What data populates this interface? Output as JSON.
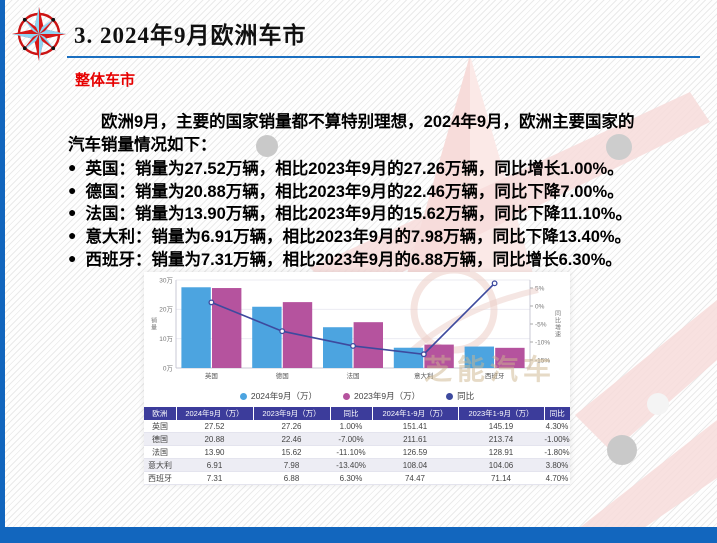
{
  "slide": {
    "title": "3. 2024年9月欧洲车市",
    "section_label": "整体车市",
    "intro_lines": [
      "欧洲9月，主要的国家销量都不算特别理想，2024年9月，欧洲主要国家的",
      "汽车销量情况如下："
    ],
    "bullet_char": "●",
    "bullets": [
      "英国：销量为27.52万辆，相比2023年9月的27.26万辆，同比增长1.00%。",
      "德国：销量为20.88万辆，相比2023年9月的22.46万辆，同比下降7.00%。",
      "法国：销量为13.90万辆，相比2023年9月的15.62万辆，同比下降11.10%。",
      "意大利：销量为6.91万辆，相比2023年9月的7.98万辆，同比下降13.40%。",
      "西班牙：销量为7.31万辆，相比2023年9月的6.88万辆，同比增长6.30%。"
    ]
  },
  "chart_data": {
    "type": "bar",
    "subtype": "grouped-bars-with-yoy-line",
    "categories": [
      "英国",
      "德国",
      "法国",
      "意大利",
      "西班牙"
    ],
    "series": [
      {
        "name": "2024年9月（万）",
        "type": "bar",
        "color": "#4CA4E0",
        "values": [
          27.52,
          20.88,
          13.9,
          6.91,
          7.31
        ]
      },
      {
        "name": "2023年9月（万）",
        "type": "bar",
        "color": "#B5539E",
        "values": [
          27.26,
          22.46,
          15.62,
          7.98,
          6.88
        ]
      },
      {
        "name": "同比",
        "type": "line",
        "axis": "right",
        "color": "#3D4A9E",
        "values": [
          1.0,
          -7.0,
          -11.1,
          -13.4,
          6.3
        ]
      }
    ],
    "left_axis": {
      "label": "销量",
      "unit": "万",
      "ticks": [
        0,
        10,
        20,
        30
      ],
      "min": 0,
      "max": 30
    },
    "right_axis": {
      "label": "同比增速",
      "unit": "%",
      "ticks": [
        5,
        0,
        -5,
        -10,
        -15
      ]
    },
    "legend_position": "bottom",
    "grid": true
  },
  "table": {
    "headers": [
      "欧洲",
      "2024年9月（万）",
      "2023年9月（万）",
      "同比",
      "2024年1-9月（万）",
      "2023年1-9月（万）",
      "同比"
    ],
    "rows": [
      [
        "英国",
        "27.52",
        "27.26",
        "1.00%",
        "151.41",
        "145.19",
        "4.30%"
      ],
      [
        "德国",
        "20.88",
        "22.46",
        "-7.00%",
        "211.61",
        "213.74",
        "-1.00%"
      ],
      [
        "法国",
        "13.90",
        "15.62",
        "-11.10%",
        "126.59",
        "128.91",
        "-1.80%"
      ],
      [
        "意大利",
        "6.91",
        "7.98",
        "-13.40%",
        "108.04",
        "104.06",
        "3.80%"
      ],
      [
        "西班牙",
        "7.31",
        "6.88",
        "6.30%",
        "74.47",
        "71.14",
        "4.70%"
      ]
    ]
  },
  "watermark": {
    "brand_text": "芝能汽车"
  },
  "colors": {
    "accent_blue": "#1266BE",
    "underline_blue": "#1B6FC0",
    "section_red": "#E60000",
    "table_header_bg": "#3C3C9B",
    "bar_2024": "#4CA4E0",
    "bar_2023": "#B5539E",
    "yoy_line": "#3D4A9E"
  }
}
